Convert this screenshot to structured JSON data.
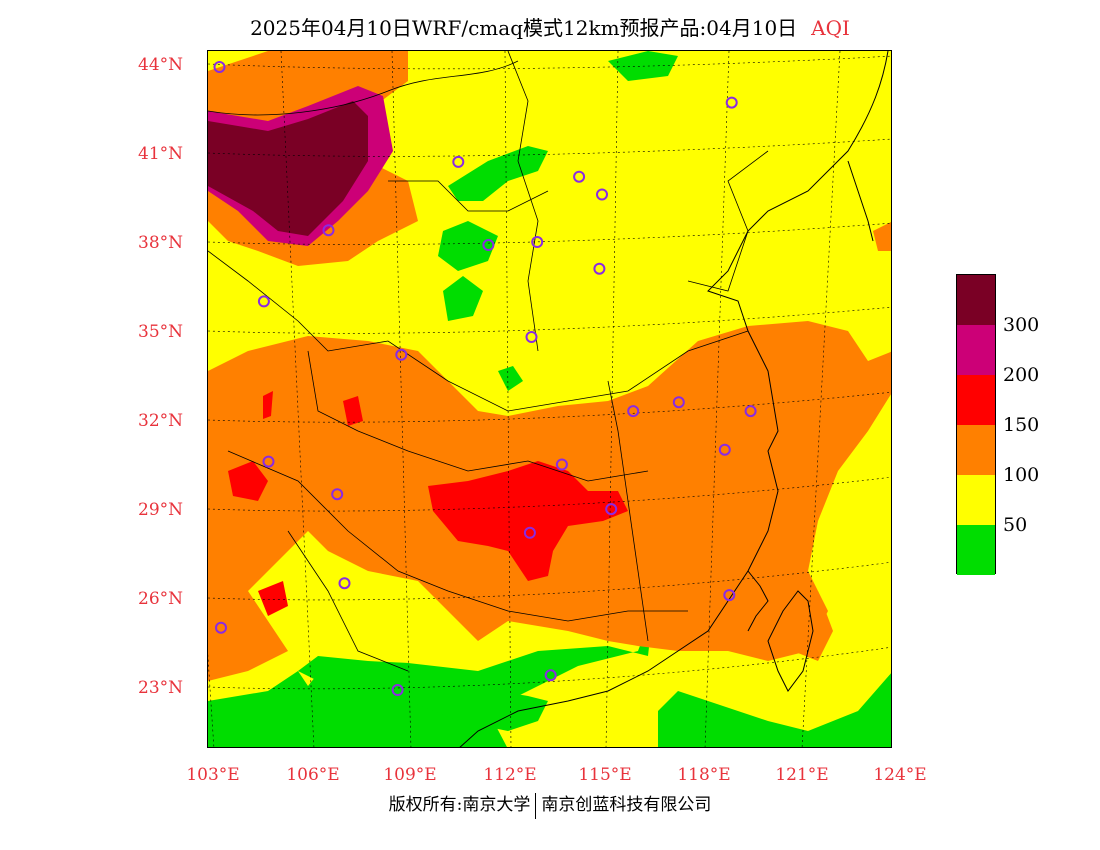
{
  "title": {
    "text": "2025年04月10日WRF/cmaq模式12km预报产品:04月10日",
    "variable": "AQI"
  },
  "axes": {
    "lat_labels": [
      "44°N",
      "41°N",
      "38°N",
      "35°N",
      "32°N",
      "29°N",
      "26°N",
      "23°N"
    ],
    "lat_values": [
      44,
      41,
      38,
      35,
      32,
      29,
      26,
      23
    ],
    "lon_labels": [
      "103°E",
      "106°E",
      "109°E",
      "112°E",
      "115°E",
      "118°E",
      "121°E",
      "124°E"
    ],
    "lon_values": [
      103,
      106,
      109,
      112,
      115,
      118,
      121,
      124
    ]
  },
  "legend": {
    "levels": [
      {
        "label": "",
        "color": "#7a0025"
      },
      {
        "label": "300",
        "color": "#cc0077"
      },
      {
        "label": "200",
        "color": "#ff0000"
      },
      {
        "label": "150",
        "color": "#ff8000"
      },
      {
        "label": "100",
        "color": "#ffff00"
      },
      {
        "label": "50",
        "color": "#00dd00"
      }
    ]
  },
  "copyright": {
    "left": "版权所有:南京大学",
    "right": "南京创蓝科技有限公司"
  },
  "colors": {
    "good": "#00dd00",
    "moderate": "#ffff00",
    "sensitive": "#ff8000",
    "unhealthy": "#ff0000",
    "very_unhealthy": "#cc0077",
    "hazardous": "#7a0025",
    "station_marker": "#8a2be2",
    "axis_label": "#e8333c"
  },
  "stations": [
    {
      "lon": 103.2,
      "lat": 43.9
    },
    {
      "lon": 118.9,
      "lat": 42.7
    },
    {
      "lon": 110.5,
      "lat": 40.7
    },
    {
      "lon": 114.2,
      "lat": 40.2
    },
    {
      "lon": 114.9,
      "lat": 39.6
    },
    {
      "lon": 106.5,
      "lat": 38.4
    },
    {
      "lon": 111.4,
      "lat": 37.9
    },
    {
      "lon": 112.9,
      "lat": 38.0
    },
    {
      "lon": 114.8,
      "lat": 37.1
    },
    {
      "lon": 104.5,
      "lat": 36.0
    },
    {
      "lon": 112.7,
      "lat": 34.8
    },
    {
      "lon": 108.7,
      "lat": 34.2
    },
    {
      "lon": 117.2,
      "lat": 32.6
    },
    {
      "lon": 115.8,
      "lat": 32.3
    },
    {
      "lon": 119.4,
      "lat": 32.3
    },
    {
      "lon": 118.6,
      "lat": 31.0
    },
    {
      "lon": 104.6,
      "lat": 30.6
    },
    {
      "lon": 113.6,
      "lat": 30.5
    },
    {
      "lon": 106.7,
      "lat": 29.5
    },
    {
      "lon": 115.1,
      "lat": 29.0
    },
    {
      "lon": 112.6,
      "lat": 28.2
    },
    {
      "lon": 106.9,
      "lat": 26.5
    },
    {
      "lon": 118.7,
      "lat": 26.1
    },
    {
      "lon": 103.1,
      "lat": 25.0
    },
    {
      "lon": 113.2,
      "lat": 23.4
    },
    {
      "lon": 108.5,
      "lat": 22.9
    }
  ]
}
